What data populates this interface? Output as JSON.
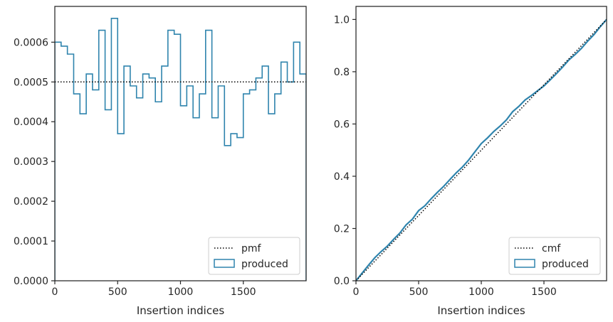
{
  "colors": {
    "produced": "#2f84ad",
    "reference": "#000000",
    "frame": "#262626"
  },
  "chart_data": [
    {
      "type": "step",
      "xlabel": "Insertion indices",
      "ylabel": "",
      "xlim": [
        0,
        2000
      ],
      "ylim": [
        0,
        0.00069
      ],
      "xticks": [
        0,
        500,
        1000,
        1500
      ],
      "xtick_labels": [
        "0",
        "500",
        "1000",
        "1500"
      ],
      "yticks": [
        0,
        0.0001,
        0.0002,
        0.0003,
        0.0004,
        0.0005,
        0.0006
      ],
      "ytick_labels": [
        "0.0000",
        "0.0001",
        "0.0002",
        "0.0003",
        "0.0004",
        "0.0005",
        "0.0006"
      ],
      "grid": false,
      "legend": "lower-right",
      "series": [
        {
          "name": "pmf",
          "style": "dotted",
          "values": [
            0.0005,
            0.0005
          ],
          "x": [
            0,
            2000
          ]
        },
        {
          "name": "produced",
          "style": "step",
          "bin_edges": [
            0,
            50,
            100,
            150,
            200,
            250,
            300,
            350,
            400,
            450,
            500,
            550,
            600,
            650,
            700,
            750,
            800,
            850,
            900,
            950,
            1000,
            1050,
            1100,
            1150,
            1200,
            1250,
            1300,
            1350,
            1400,
            1450,
            1500,
            1550,
            1600,
            1650,
            1700,
            1750,
            1800,
            1850,
            1900,
            1950,
            2000
          ],
          "values": [
            0.0006,
            0.00059,
            0.00057,
            0.00047,
            0.00042,
            0.00052,
            0.00048,
            0.00063,
            0.00043,
            0.00066,
            0.00037,
            0.00054,
            0.00049,
            0.00046,
            0.00052,
            0.00051,
            0.00045,
            0.00054,
            0.00063,
            0.00062,
            0.00044,
            0.00049,
            0.00041,
            0.00047,
            0.00063,
            0.00041,
            0.00049,
            0.00034,
            0.00037,
            0.00036,
            0.00047,
            0.00048,
            0.00051,
            0.00054,
            0.00042,
            0.00047,
            0.00055,
            0.0005,
            0.0006,
            0.00052
          ]
        }
      ]
    },
    {
      "type": "line",
      "xlabel": "Insertion indices",
      "ylabel": "",
      "xlim": [
        0,
        2000
      ],
      "ylim": [
        0,
        1.05
      ],
      "xticks": [
        0,
        500,
        1000,
        1500
      ],
      "xtick_labels": [
        "0",
        "500",
        "1000",
        "1500"
      ],
      "yticks": [
        0,
        0.2,
        0.4,
        0.6,
        0.8,
        1.0
      ],
      "ytick_labels": [
        "0.0",
        "0.2",
        "0.4",
        "0.6",
        "0.8",
        "1.0"
      ],
      "grid": false,
      "legend": "lower-right",
      "series": [
        {
          "name": "cmf",
          "style": "dotted",
          "x": [
            0,
            2000
          ],
          "values": [
            0,
            1
          ]
        },
        {
          "name": "produced",
          "style": "line",
          "x": [
            0,
            50,
            100,
            150,
            200,
            250,
            300,
            350,
            400,
            450,
            500,
            550,
            600,
            650,
            700,
            750,
            800,
            850,
            900,
            950,
            1000,
            1050,
            1100,
            1150,
            1200,
            1250,
            1300,
            1350,
            1400,
            1450,
            1500,
            1550,
            1600,
            1650,
            1700,
            1750,
            1800,
            1850,
            1900,
            1950,
            2000
          ],
          "values": [
            0,
            0.03,
            0.0595,
            0.088,
            0.1115,
            0.1325,
            0.1585,
            0.1825,
            0.214,
            0.2355,
            0.2685,
            0.287,
            0.314,
            0.3385,
            0.3615,
            0.3875,
            0.413,
            0.4355,
            0.4625,
            0.494,
            0.525,
            0.547,
            0.5715,
            0.592,
            0.6155,
            0.647,
            0.6675,
            0.692,
            0.709,
            0.7275,
            0.7455,
            0.769,
            0.793,
            0.8185,
            0.8455,
            0.8665,
            0.89,
            0.9175,
            0.9425,
            0.9725,
            1.0
          ]
        }
      ]
    }
  ]
}
